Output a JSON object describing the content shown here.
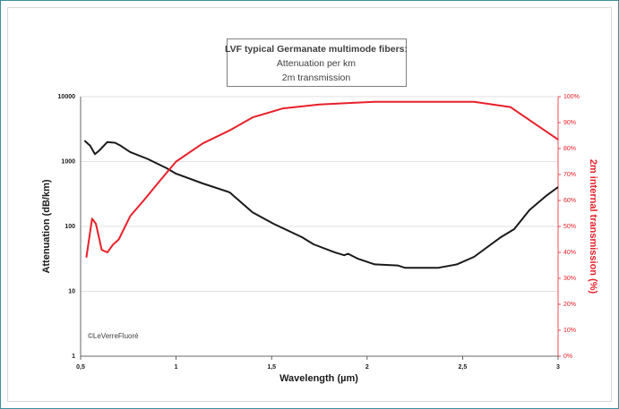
{
  "chart_data": {
    "type": "line",
    "title": "LVF typical Germanate multimode fibers:",
    "subtitle": [
      "Attenuation per km",
      "2m transmission"
    ],
    "x_label": "Wavelength (µm)",
    "y_label": "Attenuation (dB/km)",
    "y2_label": "2m internal transmission (%)",
    "annotations": [
      "©LeVerreFluoré"
    ],
    "log_y": true,
    "grid": true,
    "xlim": [
      0.5,
      3
    ],
    "xticks": [
      {
        "value": 0.5,
        "label": "0,5"
      },
      1,
      {
        "value": 1.5,
        "label": "1,5"
      },
      2,
      {
        "value": 2.5,
        "label": "2,5"
      },
      3
    ],
    "ylim": [
      1,
      10000
    ],
    "yticks": [
      1,
      10,
      100,
      1000,
      10000
    ],
    "y2lim": [
      0,
      100
    ],
    "y2ticks": [
      {
        "value": 0,
        "label": "0%"
      },
      {
        "value": 10,
        "label": "10%"
      },
      {
        "value": 20,
        "label": "20%"
      },
      {
        "value": 30,
        "label": "30%"
      },
      {
        "value": 40,
        "label": "40%"
      },
      {
        "value": 50,
        "label": "50%"
      },
      {
        "value": 60,
        "label": "60%"
      },
      {
        "value": 70,
        "label": "70%"
      },
      {
        "value": 80,
        "label": "80%"
      },
      {
        "value": 90,
        "label": "90%"
      },
      {
        "value": 100,
        "label": "100%"
      }
    ],
    "series": [
      {
        "color": "#1a1a1a",
        "x": [
          0.52,
          0.55,
          0.575,
          0.6,
          0.64,
          0.68,
          0.71,
          0.76,
          0.85,
          0.95,
          1.0,
          1.14,
          1.28,
          1.4,
          1.51,
          1.66,
          1.72,
          1.83,
          1.88,
          1.9,
          1.95,
          2.04,
          2.16,
          2.2,
          2.37,
          2.47,
          2.56,
          2.7,
          2.77,
          2.85,
          2.94,
          3.0
        ],
        "values": [
          2100,
          1750,
          1300,
          1500,
          2000,
          1950,
          1750,
          1400,
          1100,
          790,
          650,
          460,
          335,
          165,
          110,
          68,
          53,
          40,
          36,
          38,
          32,
          26,
          25,
          23,
          23,
          26,
          34,
          68,
          91,
          178,
          300,
          405
        ]
      },
      {
        "color": "#e8202a",
        "axis": "y2",
        "x": [
          0.53,
          0.56,
          0.58,
          0.61,
          0.64,
          0.67,
          0.7,
          0.76,
          0.83,
          0.92,
          1.0,
          1.14,
          1.28,
          1.4,
          1.56,
          1.75,
          2.04,
          2.56,
          2.75,
          2.89,
          3.0
        ],
        "values": [
          38,
          53,
          51,
          41,
          40,
          43,
          45,
          54,
          60,
          68,
          75,
          82,
          87,
          92,
          95.5,
          97,
          98,
          98,
          96,
          89,
          83.5
        ]
      }
    ]
  }
}
